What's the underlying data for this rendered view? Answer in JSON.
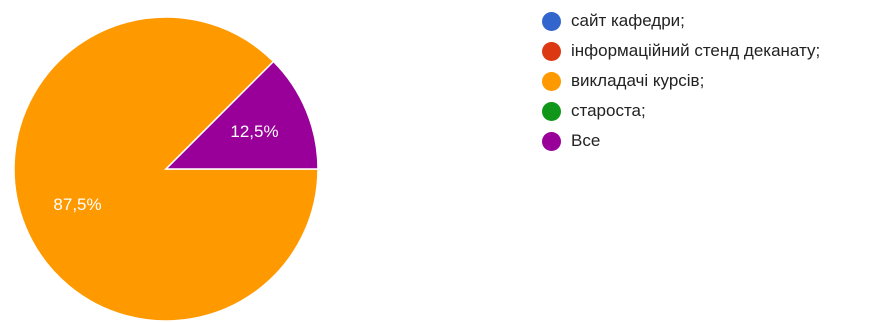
{
  "chart_data": {
    "type": "pie",
    "categories": [
      "сайт кафедри;",
      "інформаційний стенд деканату;",
      "викладачі курсів;",
      "староста;",
      "Все"
    ],
    "values": [
      0,
      0,
      87.5,
      0,
      12.5
    ],
    "colors": [
      "#3366cc",
      "#dc3912",
      "#ff9900",
      "#109618",
      "#990099"
    ],
    "slice_labels": [
      "",
      "",
      "87,5%",
      "",
      "12,5%"
    ],
    "legend": "right"
  }
}
